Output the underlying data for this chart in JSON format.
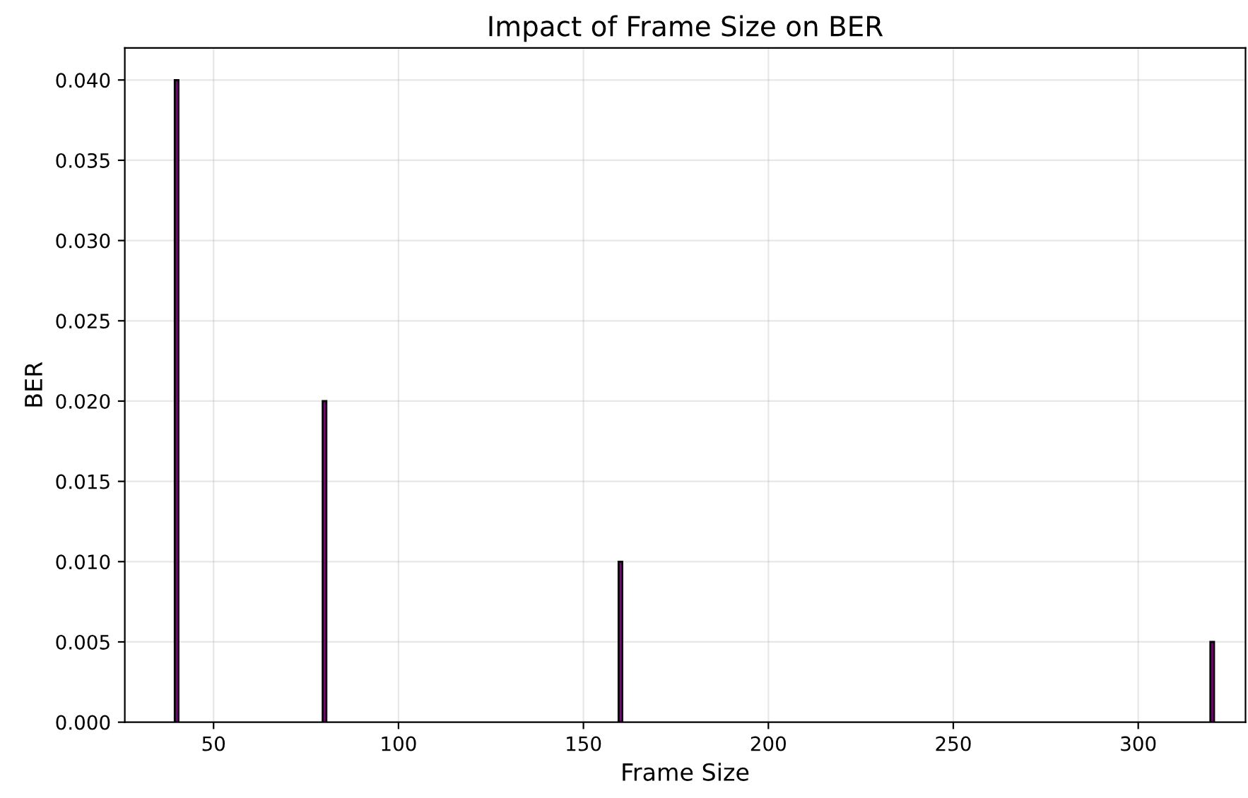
{
  "chart_data": {
    "type": "bar",
    "title": "Impact of Frame Size on BER",
    "xlabel": "Frame Size",
    "ylabel": "BER",
    "x": [
      40,
      80,
      160,
      320
    ],
    "series": [
      {
        "color": "#800080",
        "values": [
          0.04,
          0.02,
          0.01,
          0.005
        ]
      }
    ],
    "xlim": [
      26,
      329
    ],
    "xticks": [
      50,
      100,
      150,
      200,
      250,
      300
    ],
    "ylim": [
      0,
      0.042
    ],
    "yticks": [
      {
        "value": 0,
        "label": "0.000"
      },
      {
        "value": 0.005,
        "label": "0.005"
      },
      {
        "value": 0.01,
        "label": "0.010"
      },
      {
        "value": 0.015,
        "label": "0.015"
      },
      {
        "value": 0.02,
        "label": "0.020"
      },
      {
        "value": 0.025,
        "label": "0.025"
      },
      {
        "value": 0.03,
        "label": "0.030"
      },
      {
        "value": 0.035,
        "label": "0.035"
      },
      {
        "value": 0.04,
        "label": "0.040"
      }
    ],
    "grid": true
  }
}
